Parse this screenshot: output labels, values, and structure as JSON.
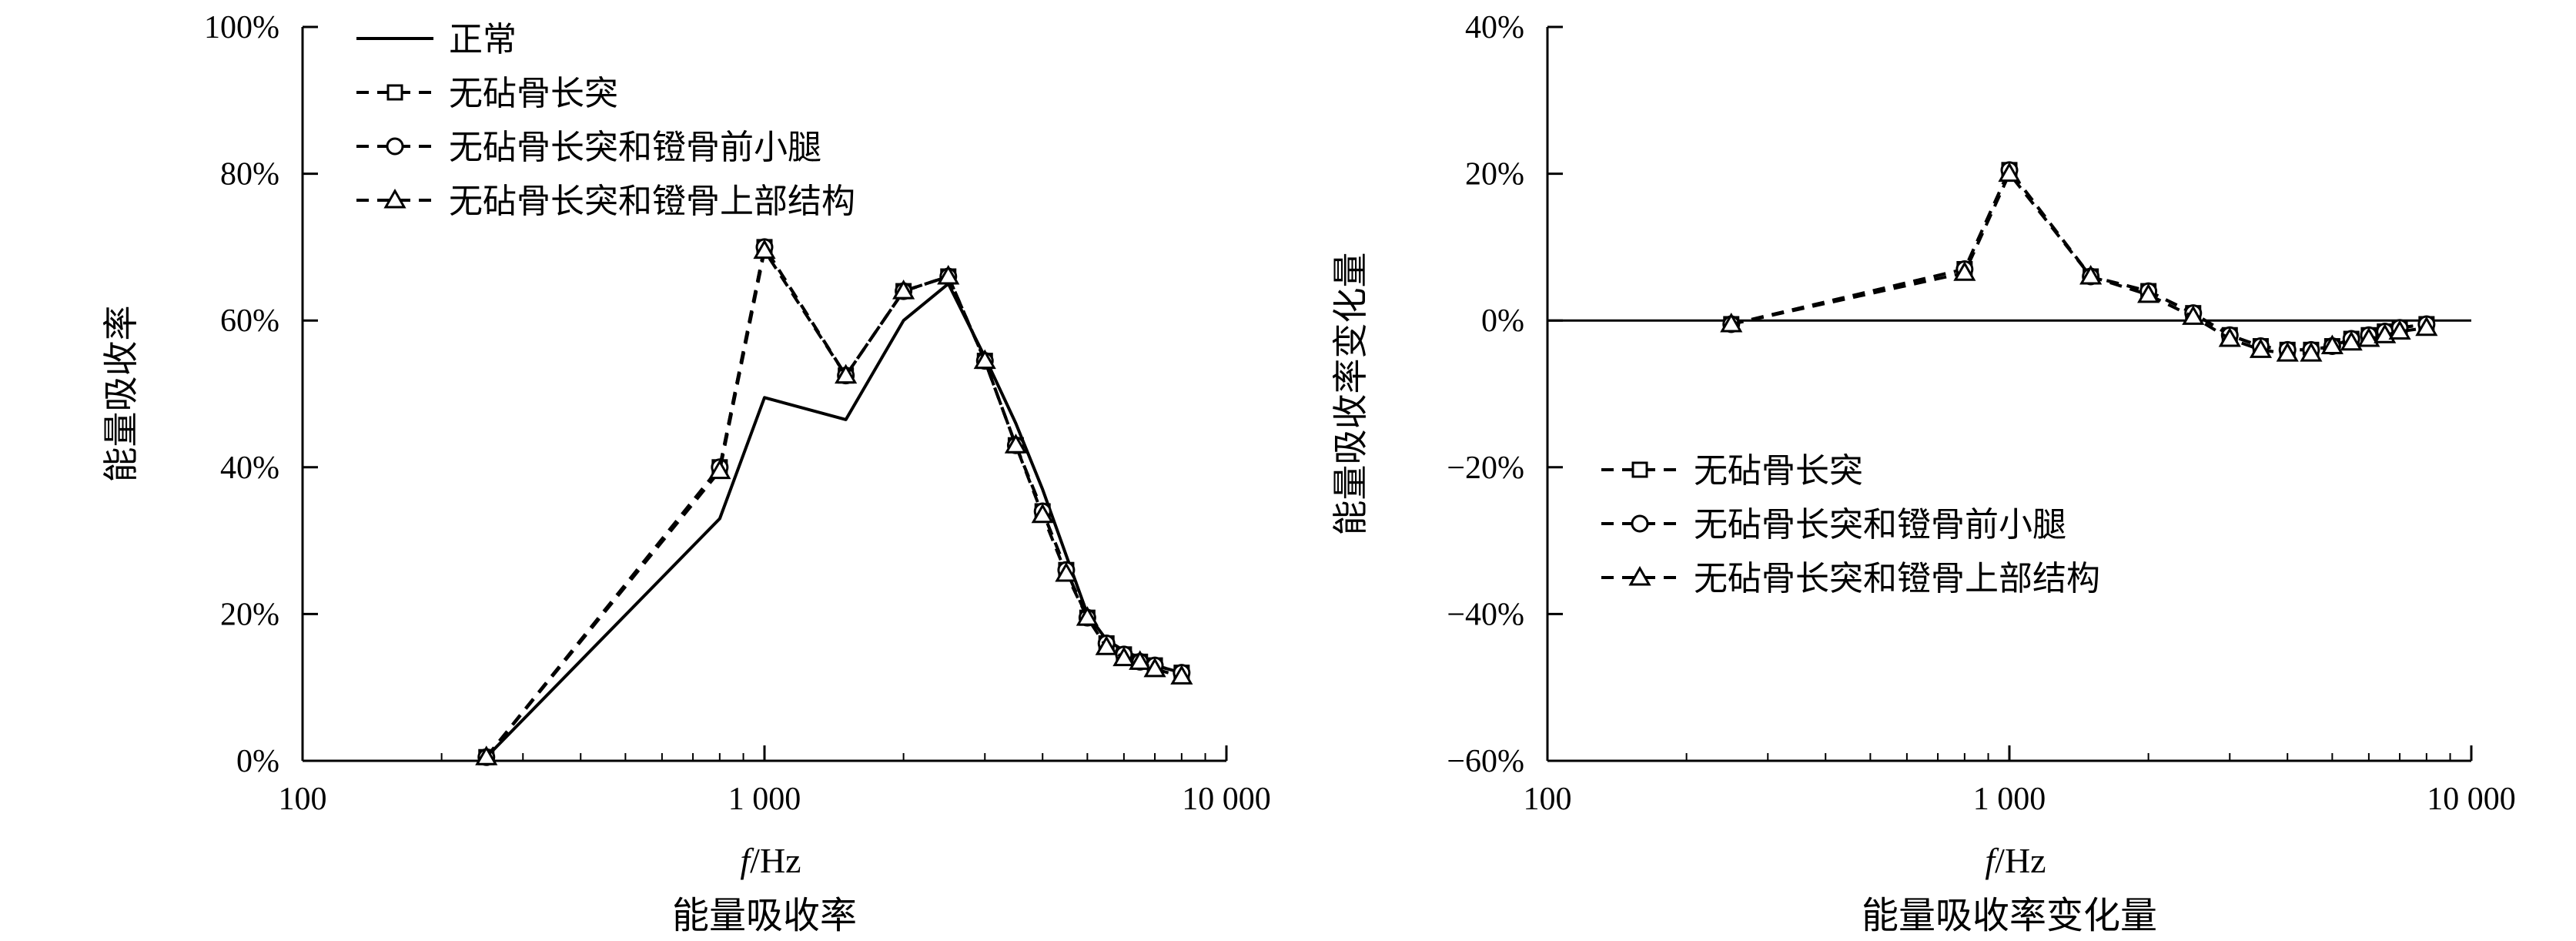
{
  "chart_data": [
    {
      "type": "line",
      "caption": "能量吸收率",
      "xlabel_italic": "f",
      "xlabel_unit": "/Hz",
      "ylabel": "能量吸收率",
      "x_scale": "log",
      "xlim": [
        100,
        10000
      ],
      "ylim": [
        0,
        100
      ],
      "x_ticks": [
        100,
        1000,
        10000
      ],
      "x_tick_labels": [
        "100",
        "1 000",
        "10 000"
      ],
      "y_ticks": [
        0,
        20,
        40,
        60,
        80,
        100
      ],
      "y_tick_labels": [
        "0%",
        "20%",
        "40%",
        "60%",
        "80%",
        "100%"
      ],
      "legend_position": "top-left",
      "grid": false,
      "x": [
        250,
        800,
        1000,
        1500,
        2000,
        2500,
        3000,
        3500,
        4000,
        4500,
        5000,
        5500,
        6000,
        6500,
        7000,
        8000
      ],
      "series": [
        {
          "name": "正常",
          "style": "solid",
          "marker": "none",
          "values": [
            0.5,
            33,
            49.5,
            46.5,
            60,
            65,
            55,
            46,
            37,
            28,
            20,
            16.5,
            15,
            14,
            13,
            12
          ]
        },
        {
          "name": "无砧骨长突",
          "style": "dashed",
          "marker": "square",
          "values": [
            0.5,
            40,
            70,
            52.5,
            64,
            66,
            54.5,
            43,
            34,
            26,
            19.5,
            16,
            14.5,
            13.5,
            13,
            12
          ]
        },
        {
          "name": "无砧骨长突和镫骨前小腿",
          "style": "dashed",
          "marker": "circle",
          "values": [
            0.5,
            40,
            70,
            52.5,
            64,
            66,
            54.5,
            43,
            34,
            26,
            19.5,
            16,
            14.5,
            13.5,
            13,
            12
          ]
        },
        {
          "name": "无砧骨长突和镫骨上部结构",
          "style": "dashed",
          "marker": "triangle",
          "values": [
            0.5,
            39.5,
            69.5,
            52.5,
            64,
            66,
            54.5,
            43,
            33.5,
            25.5,
            19.5,
            15.5,
            14,
            13.5,
            12.5,
            11.5
          ]
        }
      ]
    },
    {
      "type": "line",
      "caption": "能量吸收率变化量",
      "xlabel_italic": "f",
      "xlabel_unit": "/Hz",
      "ylabel": "能量吸收率变化量",
      "x_scale": "log",
      "xlim": [
        100,
        10000
      ],
      "ylim": [
        -60,
        40
      ],
      "x_ticks": [
        100,
        1000,
        10000
      ],
      "x_tick_labels": [
        "100",
        "1 000",
        "10 000"
      ],
      "y_ticks": [
        -60,
        -40,
        -20,
        0,
        20,
        40
      ],
      "y_tick_labels": [
        "−60%",
        "−40%",
        "−20%",
        "0%",
        "20%",
        "40%"
      ],
      "zero_line": true,
      "legend_position": "center-left",
      "grid": false,
      "x": [
        250,
        800,
        1000,
        1500,
        2000,
        2500,
        3000,
        3500,
        4000,
        4500,
        5000,
        5500,
        6000,
        6500,
        7000,
        8000
      ],
      "series": [
        {
          "name": "无砧骨长突",
          "style": "dashed",
          "marker": "square",
          "values": [
            -0.5,
            7,
            20.5,
            6,
            4,
            1,
            -2,
            -3.5,
            -4,
            -4,
            -3.5,
            -2.5,
            -2,
            -1.5,
            -1,
            -0.5
          ]
        },
        {
          "name": "无砧骨长突和镫骨前小腿",
          "style": "dashed",
          "marker": "circle",
          "values": [
            -0.5,
            7,
            20.5,
            6,
            4,
            1,
            -2,
            -3.5,
            -4,
            -4,
            -3.5,
            -2.5,
            -2,
            -1.5,
            -1,
            -0.5
          ]
        },
        {
          "name": "无砧骨长突和镫骨上部结构",
          "style": "dashed",
          "marker": "triangle",
          "values": [
            -0.5,
            6.5,
            20,
            6,
            3.5,
            0.5,
            -2.5,
            -4,
            -4.5,
            -4.5,
            -3.5,
            -3,
            -2.5,
            -2,
            -1.5,
            -1
          ]
        }
      ]
    }
  ]
}
